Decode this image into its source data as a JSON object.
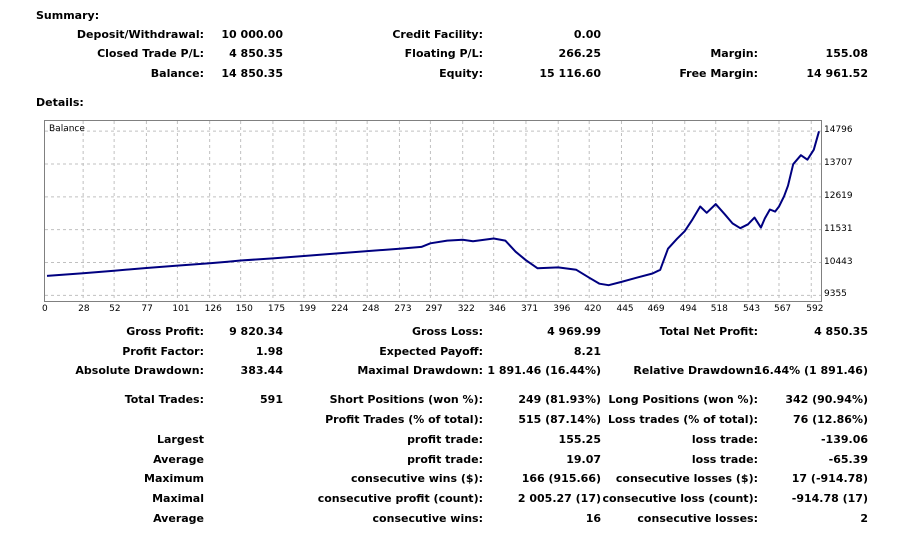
{
  "summary": {
    "title": "Summary:",
    "deposit_label": "Deposit/Withdrawal:",
    "deposit_value": "10 000.00",
    "credit_label": "Credit Facility:",
    "credit_value": "0.00",
    "closed_pl_label": "Closed Trade P/L:",
    "closed_pl_value": "4 850.35",
    "floating_pl_label": "Floating P/L:",
    "floating_pl_value": "266.25",
    "margin_label": "Margin:",
    "margin_value": "155.08",
    "balance_label": "Balance:",
    "balance_value": "14 850.35",
    "equity_label": "Equity:",
    "equity_value": "15 116.60",
    "free_margin_label": "Free Margin:",
    "free_margin_value": "14 961.52"
  },
  "details": {
    "title": "Details:",
    "gross_profit_label": "Gross Profit:",
    "gross_profit_value": "9 820.34",
    "gross_loss_label": "Gross Loss:",
    "gross_loss_value": "4 969.99",
    "total_net_label": "Total Net Profit:",
    "total_net_value": "4 850.35",
    "profit_factor_label": "Profit Factor:",
    "profit_factor_value": "1.98",
    "expected_payoff_label": "Expected Payoff:",
    "expected_payoff_value": "8.21",
    "abs_dd_label": "Absolute Drawdown:",
    "abs_dd_value": "383.44",
    "max_dd_label": "Maximal Drawdown:",
    "max_dd_value": "1 891.46 (16.44%)",
    "rel_dd_label": "Relative Drawdown:",
    "rel_dd_value": "16.44% (1 891.46)",
    "total_trades_label": "Total Trades:",
    "total_trades_value": "591",
    "short_label": "Short Positions (won %):",
    "short_value": "249 (81.93%)",
    "long_label": "Long Positions (won %):",
    "long_value": "342 (90.94%)",
    "profit_trades_label": "Profit Trades (% of total):",
    "profit_trades_value": "515 (87.14%)",
    "loss_trades_label": "Loss trades (% of total):",
    "loss_trades_value": "76 (12.86%)",
    "largest_label": "Largest",
    "largest_profit_label": "profit trade:",
    "largest_profit_value": "155.25",
    "largest_loss_label": "loss trade:",
    "largest_loss_value": "-139.06",
    "average_label": "Average",
    "average_profit_label": "profit trade:",
    "average_profit_value": "19.07",
    "average_loss_label": "loss trade:",
    "average_loss_value": "-65.39",
    "maximum_label": "Maximum",
    "max_cons_wins_label": "consecutive wins ($):",
    "max_cons_wins_value": "166 (915.66)",
    "max_cons_losses_label": "consecutive losses ($):",
    "max_cons_losses_value": "17 (-914.78)",
    "maximal_label": "Maximal",
    "maximal_profit_label": "consecutive profit (count):",
    "maximal_profit_value": "2 005.27 (17)",
    "maximal_loss_label": "consecutive loss (count):",
    "maximal_loss_value": "-914.78 (17)",
    "average2_label": "Average",
    "avg_cons_wins_label": "consecutive wins:",
    "avg_cons_wins_value": "16",
    "avg_cons_losses_label": "consecutive losses:",
    "avg_cons_losses_value": "2"
  },
  "colors": {
    "line": "#000080",
    "grid": "#c0c0c0",
    "border": "#808080"
  },
  "chart_data": {
    "type": "line",
    "title": "Balance",
    "x_ticks": [
      "0",
      "28",
      "52",
      "77",
      "101",
      "126",
      "150",
      "175",
      "199",
      "224",
      "248",
      "273",
      "297",
      "322",
      "346",
      "371",
      "396",
      "420",
      "445",
      "469",
      "494",
      "518",
      "543",
      "567",
      "592"
    ],
    "y_ticks": [
      "14796",
      "13707",
      "12619",
      "11531",
      "10443",
      "9355"
    ],
    "xlim": [
      0,
      598
    ],
    "ylim": [
      9300,
      15000
    ],
    "grid": true,
    "series": [
      {
        "x": [
          0,
          28,
          52,
          77,
          101,
          126,
          140,
          150,
          175,
          199,
          224,
          248,
          273,
          290,
          297,
          310,
          322,
          330,
          346,
          355,
          363,
          371,
          380,
          396,
          410,
          420,
          428,
          435,
          445,
          455,
          469,
          475,
          481,
          488,
          494,
          500,
          506,
          511,
          518,
          525,
          531,
          537,
          543,
          548,
          553,
          556,
          560,
          564,
          567,
          571,
          574,
          578,
          584,
          589,
          594,
          598
        ],
        "y": [
          10000,
          10090,
          10170,
          10260,
          10340,
          10420,
          10470,
          10510,
          10580,
          10660,
          10740,
          10820,
          10900,
          10960,
          11080,
          11170,
          11200,
          11150,
          11240,
          11170,
          10800,
          10520,
          10250,
          10280,
          10200,
          9940,
          9740,
          9690,
          9800,
          9920,
          10080,
          10200,
          10900,
          11230,
          11480,
          11870,
          12300,
          12090,
          12380,
          12040,
          11740,
          11580,
          11710,
          11930,
          11600,
          11900,
          12200,
          12130,
          12300,
          12640,
          12990,
          13700,
          14000,
          13850,
          14180,
          14790
        ]
      }
    ]
  }
}
